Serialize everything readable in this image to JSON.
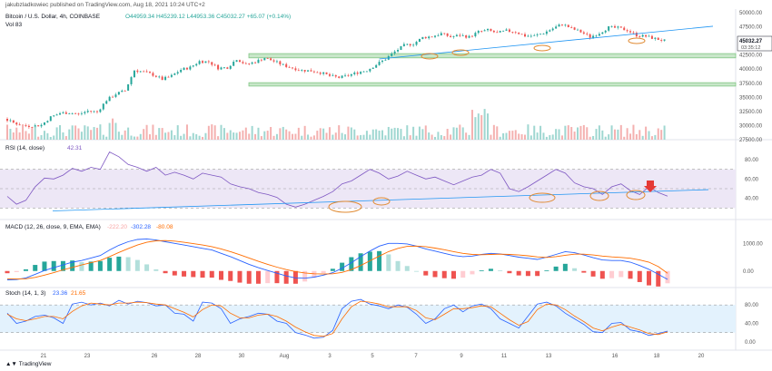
{
  "header": {
    "published": "jakubzladkowiec published on TradingView.com, Aug 18, 2021 10:24 UTC+2",
    "symbol": "Bitcoin / U.S. Dollar, 4h, COINBASE",
    "ohlc": "O44959.34 H45239.12 L44953.36 C45032.27 +65.07 (+0.14%)",
    "vol": "Vol 83"
  },
  "price_tag": {
    "value": "45032.27",
    "countdown": "03:35:12"
  },
  "colors": {
    "up": "#26a69a",
    "down": "#ef5350",
    "rsi": "#7e57c2",
    "macd": "#2962ff",
    "signal": "#ff6d00",
    "zone": "#c8e6c9",
    "zone_border": "#81c784",
    "trend": "#2196f3",
    "annot": "#e08a32",
    "arrow": "#e53935",
    "band": "#ede7f6",
    "stoch_band": "#e3f2fd"
  },
  "rsi_label": {
    "name": "RSI (14, close)",
    "value": "42.31"
  },
  "macd_label": {
    "name": "MACD (12, 26, close, 9, EMA, EMA)",
    "hist": "-222.20",
    "macd": "-302.28",
    "signal": "-80.08"
  },
  "stoch_label": {
    "name": "Stoch (14, 1, 3)",
    "k": "23.36",
    "d": "21.65"
  },
  "footer": {
    "brand": "TradingView"
  },
  "chart_data": [
    {
      "type": "candlestick",
      "title": "Bitcoin / U.S. Dollar, 4h, COINBASE",
      "y_ticks": [
        27500,
        30000,
        32500,
        35000,
        37500,
        40000,
        42500,
        45000,
        47500,
        50000
      ],
      "ylim": [
        27500,
        50000
      ],
      "x_tick_labels": [
        "21",
        "23",
        "26",
        "28",
        "30",
        "Aug",
        "3",
        "5",
        "7",
        "9",
        "11",
        "13",
        "16",
        "18",
        "20"
      ],
      "close_path": [
        31200,
        30500,
        30000,
        29900,
        30100,
        31500,
        32200,
        32300,
        32000,
        32600,
        32400,
        34500,
        35600,
        36200,
        39800,
        39500,
        39000,
        38200,
        38800,
        39900,
        40300,
        41400,
        41300,
        40200,
        40300,
        41800,
        40800,
        41300,
        42000,
        41400,
        40700,
        40200,
        39800,
        39700,
        39400,
        38800,
        38500,
        38900,
        39400,
        39800,
        40800,
        41800,
        43100,
        44200,
        44500,
        45600,
        45800,
        46300,
        45700,
        46000,
        45700,
        46600,
        46900,
        46400,
        46800,
        46600,
        45900,
        45900,
        46400,
        47200,
        48000,
        47200,
        46600,
        45700,
        46400,
        47400,
        47300,
        46900,
        46000,
        45800,
        45400,
        45032.27
      ],
      "support_zones": [
        [
          42000,
          42750
        ],
        [
          37000,
          37600
        ]
      ],
      "trendline": {
        "from": [
          40,
          41800
        ],
        "to": [
          100,
          47200
        ]
      }
    },
    {
      "type": "line",
      "name": "RSI (14, close)",
      "ylim": [
        20,
        95
      ],
      "y_ticks": [
        40,
        60,
        80
      ],
      "bands": [
        30,
        50,
        70
      ],
      "values": [
        42,
        34,
        38,
        52,
        61,
        60,
        64,
        71,
        68,
        72,
        70,
        88,
        83,
        75,
        72,
        68,
        72,
        64,
        67,
        64,
        60,
        66,
        64,
        62,
        55,
        52,
        50,
        46,
        44,
        41,
        34,
        31,
        34,
        38,
        42,
        47,
        55,
        58,
        64,
        70,
        66,
        60,
        63,
        68,
        64,
        60,
        62,
        58,
        54,
        58,
        62,
        64,
        70,
        66,
        50,
        47,
        52,
        58,
        64,
        70,
        66,
        56,
        52,
        50,
        44,
        52,
        55,
        48,
        44,
        52,
        46,
        42.31
      ]
    },
    {
      "type": "macd",
      "name": "MACD (12, 26, close, 9, EMA, EMA)",
      "ylim": [
        -500,
        1600
      ],
      "y_ticks": [
        0,
        1000
      ],
      "macd": [
        -320,
        -310,
        -250,
        -120,
        20,
        120,
        220,
        320,
        380,
        470,
        560,
        760,
        930,
        1060,
        1140,
        1160,
        1120,
        1060,
        1000,
        940,
        880,
        820,
        760,
        640,
        520,
        380,
        240,
        120,
        20,
        -80,
        -180,
        -250,
        -260,
        -220,
        -150,
        -60,
        100,
        300,
        520,
        720,
        900,
        1000,
        1000,
        980,
        900,
        800,
        720,
        640,
        560,
        520,
        540,
        600,
        640,
        620,
        560,
        500,
        460,
        420,
        500,
        600,
        700,
        660,
        580,
        480,
        400,
        380,
        380,
        320,
        200,
        60,
        -120,
        -302.28
      ],
      "signal": [
        -280,
        -290,
        -280,
        -230,
        -150,
        -60,
        40,
        130,
        220,
        300,
        380,
        520,
        670,
        810,
        940,
        1040,
        1090,
        1100,
        1080,
        1040,
        990,
        940,
        880,
        800,
        700,
        590,
        470,
        350,
        240,
        140,
        50,
        -20,
        -70,
        -100,
        -110,
        -100,
        -50,
        50,
        200,
        370,
        540,
        700,
        820,
        890,
        900,
        880,
        830,
        770,
        700,
        640,
        600,
        590,
        600,
        610,
        600,
        580,
        550,
        510,
        490,
        520,
        570,
        610,
        610,
        580,
        540,
        510,
        490,
        460,
        400,
        320,
        160,
        -80.08
      ]
    },
    {
      "type": "stochastic",
      "name": "Stoch (14, 1, 3)",
      "ylim": [
        -10,
        100
      ],
      "y_ticks": [
        0,
        40,
        80
      ],
      "bands": [
        20,
        80
      ],
      "k": [
        62,
        40,
        45,
        55,
        58,
        52,
        40,
        82,
        86,
        80,
        84,
        78,
        90,
        82,
        88,
        85,
        78,
        80,
        62,
        60,
        45,
        86,
        84,
        72,
        40,
        50,
        55,
        62,
        60,
        45,
        40,
        20,
        15,
        8,
        10,
        25,
        72,
        88,
        92,
        82,
        78,
        72,
        80,
        75,
        60,
        40,
        50,
        72,
        80,
        65,
        78,
        82,
        72,
        50,
        40,
        30,
        56,
        82,
        86,
        78,
        62,
        50,
        38,
        22,
        20,
        40,
        42,
        26,
        22,
        14,
        18,
        23.36
      ],
      "d": [
        60,
        50,
        46,
        50,
        55,
        55,
        50,
        66,
        78,
        84,
        82,
        80,
        84,
        84,
        86,
        85,
        82,
        80,
        72,
        64,
        54,
        70,
        80,
        78,
        62,
        52,
        52,
        58,
        60,
        55,
        45,
        32,
        22,
        14,
        12,
        18,
        50,
        76,
        88,
        86,
        82,
        76,
        76,
        76,
        68,
        52,
        48,
        60,
        72,
        72,
        74,
        78,
        76,
        62,
        48,
        36,
        44,
        70,
        82,
        80,
        70,
        56,
        44,
        30,
        24,
        32,
        38,
        32,
        26,
        18,
        16,
        21.65
      ]
    }
  ]
}
